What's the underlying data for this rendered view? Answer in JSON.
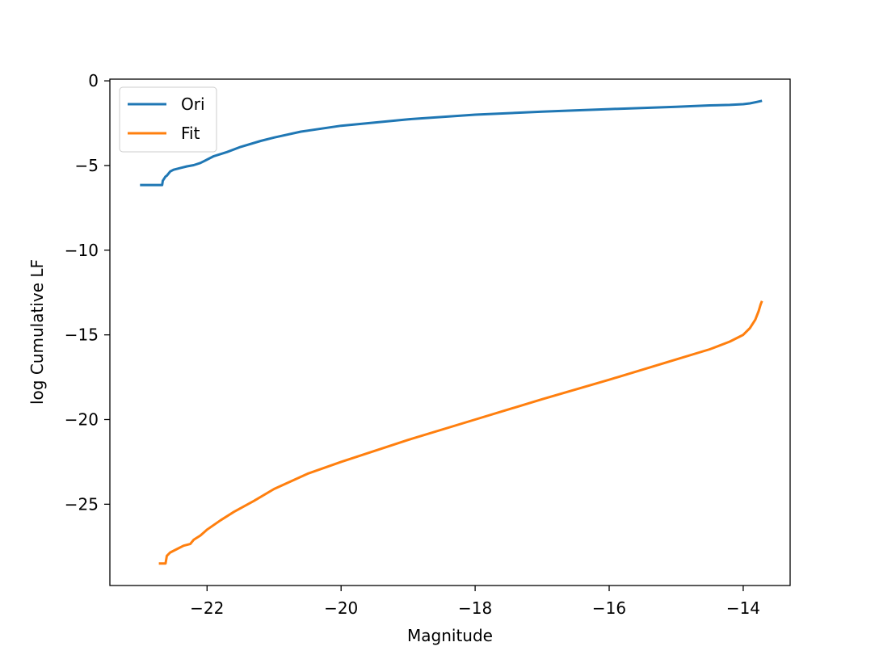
{
  "chart_data": {
    "type": "line",
    "title": "",
    "xlabel": "Magnitude",
    "ylabel": "log Cumulative LF",
    "xlim": [
      -23.45,
      -13.3
    ],
    "ylim": [
      -29.8,
      0.1
    ],
    "xticks": [
      -22,
      -20,
      -18,
      -16,
      -14
    ],
    "xtick_labels": [
      "−22",
      "−20",
      "−18",
      "−16",
      "−14"
    ],
    "yticks": [
      0,
      -5,
      -10,
      -15,
      -20,
      -25
    ],
    "ytick_labels": [
      "0",
      "−5",
      "−10",
      "−15",
      "−20",
      "−25"
    ],
    "legend_position": "upper-left",
    "series": [
      {
        "name": "Ori",
        "color": "#1f77b4",
        "x": [
          -23.0,
          -22.67,
          -22.66,
          -22.62,
          -22.6,
          -22.55,
          -22.5,
          -22.4,
          -22.3,
          -22.2,
          -22.1,
          -22.0,
          -21.9,
          -21.7,
          -21.5,
          -21.2,
          -21.0,
          -20.6,
          -20.0,
          -19.0,
          -18.0,
          -17.0,
          -16.0,
          -15.0,
          -14.5,
          -14.2,
          -14.0,
          -13.9,
          -13.8,
          -13.72
        ],
        "y": [
          -6.15,
          -6.15,
          -5.9,
          -5.65,
          -5.6,
          -5.35,
          -5.25,
          -5.15,
          -5.05,
          -4.98,
          -4.85,
          -4.65,
          -4.45,
          -4.2,
          -3.9,
          -3.55,
          -3.35,
          -3.0,
          -2.65,
          -2.27,
          -2.0,
          -1.82,
          -1.67,
          -1.53,
          -1.45,
          -1.42,
          -1.38,
          -1.33,
          -1.25,
          -1.18
        ]
      },
      {
        "name": "Fit",
        "color": "#ff7f0e",
        "x": [
          -22.72,
          -22.62,
          -22.6,
          -22.55,
          -22.45,
          -22.35,
          -22.25,
          -22.2,
          -22.1,
          -22.0,
          -21.8,
          -21.6,
          -21.3,
          -21.0,
          -20.5,
          -20.0,
          -19.0,
          -18.0,
          -17.0,
          -16.0,
          -15.0,
          -14.5,
          -14.2,
          -14.0,
          -13.9,
          -13.82,
          -13.77,
          -13.74,
          -13.72
        ],
        "y": [
          -28.5,
          -28.5,
          -28.05,
          -27.85,
          -27.65,
          -27.45,
          -27.35,
          -27.1,
          -26.85,
          -26.5,
          -25.95,
          -25.45,
          -24.8,
          -24.1,
          -23.2,
          -22.5,
          -21.2,
          -20.0,
          -18.8,
          -17.65,
          -16.45,
          -15.85,
          -15.4,
          -15.0,
          -14.6,
          -14.1,
          -13.6,
          -13.2,
          -13.0
        ]
      }
    ]
  }
}
